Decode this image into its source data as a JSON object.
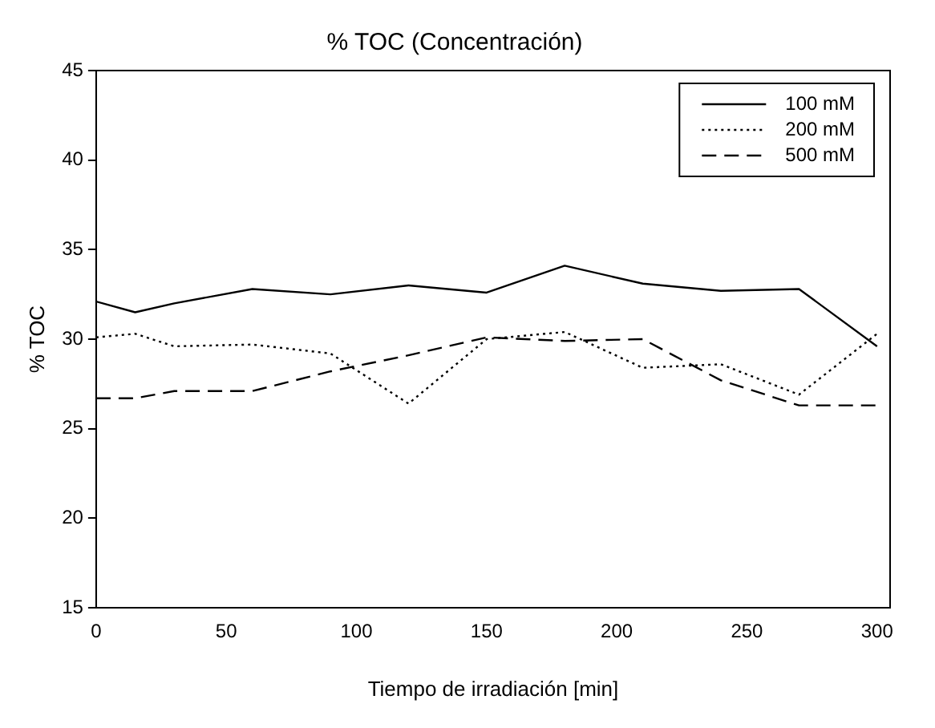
{
  "chart_data": {
    "type": "line",
    "title": "% TOC (Concentración)",
    "xlabel": "Tiempo de irradiación [min]",
    "ylabel": "% TOC",
    "x": [
      0,
      15,
      30,
      60,
      90,
      120,
      150,
      180,
      210,
      240,
      270,
      300
    ],
    "series": [
      {
        "name": "100 mM",
        "color": "#000000",
        "line_style": "solid",
        "values": [
          32.1,
          31.5,
          32.0,
          32.8,
          32.5,
          33.0,
          32.6,
          34.1,
          33.1,
          32.7,
          32.8,
          29.6
        ]
      },
      {
        "name": "200 mM",
        "color": "#000000",
        "line_style": "dotted",
        "values": [
          30.1,
          30.3,
          29.6,
          29.7,
          29.2,
          26.4,
          30.0,
          30.4,
          28.4,
          28.6,
          26.9,
          30.3
        ]
      },
      {
        "name": "500 mM",
        "color": "#000000",
        "line_style": "dashed",
        "values": [
          26.7,
          26.7,
          27.1,
          27.1,
          28.2,
          29.1,
          30.1,
          29.9,
          30.0,
          27.7,
          26.3,
          26.3
        ]
      }
    ],
    "xlim": [
      0,
      305
    ],
    "xticks": [
      0,
      50,
      100,
      150,
      200,
      250,
      300
    ],
    "ylim": [
      15,
      45
    ],
    "yticks": [
      15,
      20,
      25,
      30,
      35,
      40,
      45
    ],
    "grid": false,
    "legend": "top right",
    "marker": "none"
  }
}
